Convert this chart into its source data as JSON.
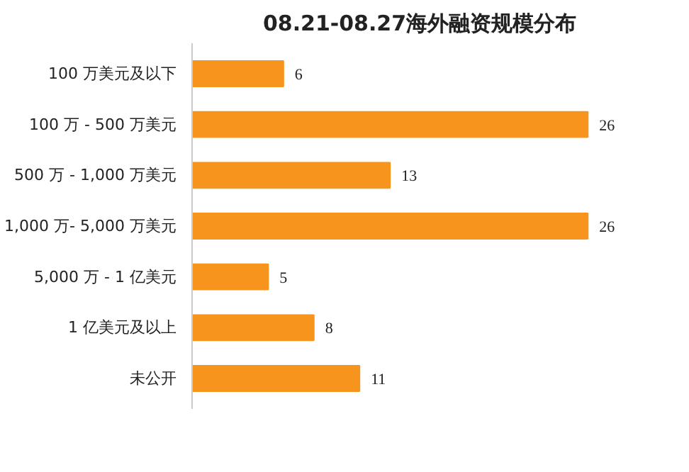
{
  "chart_data": {
    "type": "bar",
    "orientation": "horizontal",
    "title": "08.21-08.27海外融资规模分布",
    "categories": [
      "100 万美元及以下",
      "100 万 - 500 万美元",
      "500 万 - 1,000 万美元",
      "1,000 万- 5,000 万美元",
      "5,000 万 - 1 亿美元",
      "1 亿美元及以上",
      "未公开"
    ],
    "values": [
      6,
      26,
      13,
      26,
      5,
      8,
      11
    ],
    "color": "#f7941d",
    "data_labels": true,
    "grid": false
  }
}
